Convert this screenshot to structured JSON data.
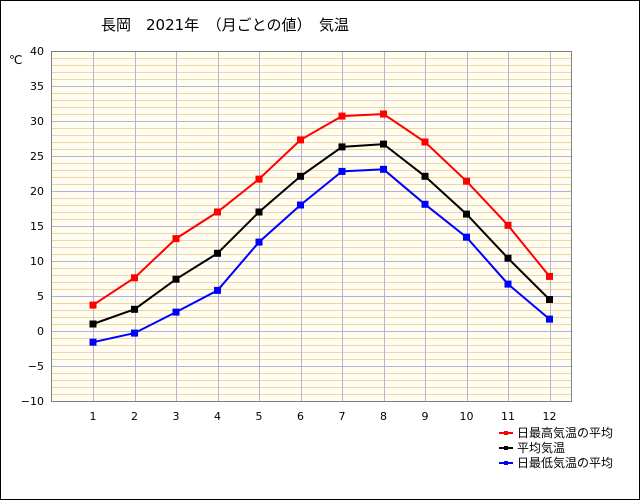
{
  "title": "長岡　2021年　（月ごとの値）　気温",
  "unit_label": "℃",
  "chart_data": {
    "type": "line",
    "title": "長岡　2021年　（月ごとの値）　気温",
    "ylabel": "℃",
    "xlabel": "",
    "categories": [
      "1",
      "2",
      "3",
      "4",
      "5",
      "6",
      "7",
      "8",
      "9",
      "10",
      "11",
      "12"
    ],
    "ylim": [
      -10,
      40
    ],
    "ytick_step": 5,
    "yticks": [
      "40",
      "35",
      "30",
      "25",
      "20",
      "15",
      "10",
      "5",
      "0",
      "−5",
      "−10"
    ],
    "grid": true,
    "legend_position": "bottom-right",
    "series": [
      {
        "name": "日最高気温の平均",
        "color": "#ff0000",
        "values": [
          3.7,
          7.6,
          13.2,
          17.0,
          21.7,
          27.3,
          30.7,
          31.0,
          27.0,
          21.4,
          15.1,
          7.8
        ]
      },
      {
        "name": "平均気温",
        "color": "#000000",
        "values": [
          1.0,
          3.1,
          7.4,
          11.1,
          17.0,
          22.1,
          26.3,
          26.7,
          22.1,
          16.7,
          10.4,
          4.5
        ]
      },
      {
        "name": "日最低気温の平均",
        "color": "#0000ff",
        "values": [
          -1.6,
          -0.3,
          2.7,
          5.8,
          12.7,
          18.0,
          22.8,
          23.1,
          18.1,
          13.4,
          6.7,
          1.7
        ]
      }
    ]
  }
}
